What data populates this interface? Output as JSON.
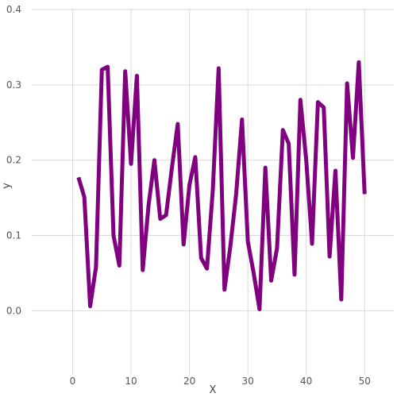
{
  "chart_data": {
    "type": "line",
    "title": "",
    "xlabel": "X",
    "ylabel": "y",
    "xlim": [
      -7,
      55
    ],
    "ylim": [
      -0.085,
      0.4
    ],
    "grid": true,
    "x_ticks": [
      0,
      10,
      20,
      30,
      40,
      50
    ],
    "y_ticks": [
      0.0,
      0.1,
      0.2,
      0.3,
      0.4
    ],
    "x_tick_labels": [
      "0",
      "10",
      "20",
      "30",
      "40",
      "50"
    ],
    "y_tick_labels": [
      "0.0",
      "0.1",
      "0.2",
      "0.3",
      "0.4"
    ],
    "color": "#800080",
    "x": [
      1,
      2,
      3,
      4,
      5,
      6,
      7,
      8,
      9,
      10,
      11,
      12,
      13,
      14,
      15,
      16,
      17,
      18,
      19,
      20,
      21,
      22,
      23,
      24,
      25,
      26,
      27,
      28,
      29,
      30,
      31,
      32,
      33,
      34,
      35,
      36,
      37,
      38,
      39,
      40,
      41,
      42,
      43,
      44,
      45,
      46,
      47,
      48,
      49,
      50
    ],
    "values": [
      0.177,
      0.151,
      0.006,
      0.058,
      0.32,
      0.324,
      0.1,
      0.06,
      0.318,
      0.195,
      0.312,
      0.054,
      0.14,
      0.2,
      0.122,
      0.127,
      0.19,
      0.248,
      0.088,
      0.167,
      0.204,
      0.07,
      0.056,
      0.16,
      0.322,
      0.028,
      0.085,
      0.155,
      0.254,
      0.092,
      0.05,
      0.002,
      0.19,
      0.04,
      0.083,
      0.24,
      0.222,
      0.048,
      0.28,
      0.2,
      0.089,
      0.277,
      0.27,
      0.072,
      0.186,
      0.015,
      0.302,
      0.203,
      0.33,
      0.155
    ]
  }
}
